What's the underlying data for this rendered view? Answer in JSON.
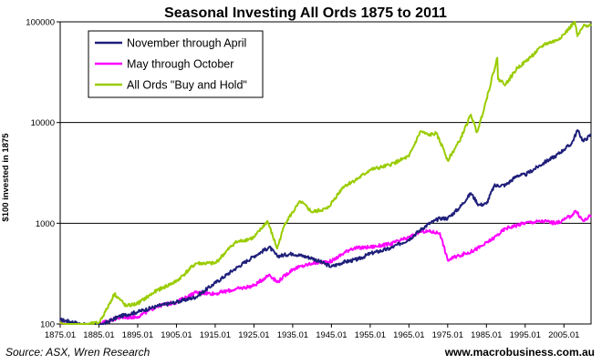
{
  "chart_data": {
    "type": "line",
    "title": "Seasonal Investing All Ords 1875 to 2011",
    "ylabel": "$100 invested in 1875",
    "xlabel": "",
    "yscale": "log",
    "ylim": [
      100,
      100000
    ],
    "xlim": [
      1875,
      2012
    ],
    "y_ticks": [
      100,
      1000,
      10000,
      100000
    ],
    "y_tick_labels": [
      "100",
      "1000",
      "10000",
      "100000"
    ],
    "x_ticks": [
      1875,
      1885,
      1895,
      1905,
      1915,
      1925,
      1935,
      1945,
      1955,
      1965,
      1975,
      1985,
      1995,
      2005
    ],
    "x_tick_labels": [
      "1875.01",
      "1885.01",
      "1895.01",
      "1905.01",
      "1915.01",
      "1925.01",
      "1935.01",
      "1945.01",
      "1955.01",
      "1965.01",
      "1975.01",
      "1985.01",
      "1995.01",
      "2005.01"
    ],
    "legend_position": "top-left",
    "series": [
      {
        "name": "November through April",
        "color": "#1f1f7a",
        "x": [
          1875,
          1878,
          1881,
          1885,
          1890,
          1895,
          1900,
          1905,
          1910,
          1915,
          1920,
          1925,
          1929,
          1931,
          1935,
          1940,
          1945,
          1948,
          1952,
          1955,
          1960,
          1965,
          1968,
          1970,
          1973,
          1975,
          1978,
          1981,
          1983,
          1985,
          1987,
          1990,
          1993,
          1995,
          2000,
          2003,
          2005,
          2007,
          2008.5,
          2010,
          2012
        ],
        "values": [
          110,
          105,
          98,
          95,
          118,
          132,
          150,
          165,
          185,
          255,
          350,
          470,
          580,
          470,
          500,
          450,
          370,
          410,
          440,
          500,
          560,
          690,
          860,
          980,
          1120,
          1120,
          1420,
          1990,
          1520,
          1560,
          2350,
          2400,
          2990,
          3020,
          4020,
          4700,
          5400,
          6200,
          8400,
          6500,
          7600
        ]
      },
      {
        "name": "May through October",
        "color": "#ff00ff",
        "x": [
          1875,
          1880,
          1885,
          1890,
          1895,
          1900,
          1905,
          1910,
          1915,
          1920,
          1925,
          1929,
          1931,
          1935,
          1940,
          1945,
          1950,
          1955,
          1960,
          1965,
          1968,
          1970,
          1973,
          1975,
          1978,
          1981,
          1984,
          1987,
          1990,
          1995,
          2000,
          2003,
          2005,
          2007,
          2008,
          2010,
          2012
        ],
        "values": [
          100,
          95,
          100,
          115,
          118,
          150,
          165,
          205,
          200,
          220,
          240,
          310,
          260,
          350,
          400,
          420,
          560,
          580,
          620,
          720,
          830,
          830,
          800,
          430,
          480,
          520,
          600,
          720,
          890,
          1010,
          1050,
          1000,
          1080,
          1200,
          1330,
          1050,
          1200
        ]
      },
      {
        "name": "All Ords \"Buy and Hold\"",
        "color": "#99cc00",
        "x": [
          1875,
          1878,
          1880,
          1885,
          1887,
          1889,
          1892,
          1895,
          1900,
          1905,
          1910,
          1915,
          1920,
          1925,
          1928.5,
          1931,
          1933,
          1937,
          1940,
          1944,
          1948,
          1952,
          1955,
          1958,
          1960,
          1965,
          1968,
          1970,
          1972,
          1974,
          1975,
          1978,
          1981,
          1982.5,
          1983,
          1985,
          1987.8,
          1988,
          1990,
          1993,
          1995,
          2000,
          2003,
          2005,
          2007.8,
          2008.5,
          2010,
          2012
        ],
        "values": [
          100,
          92,
          95,
          103,
          140,
          200,
          150,
          160,
          215,
          265,
          400,
          400,
          640,
          720,
          1050,
          560,
          1000,
          1650,
          1290,
          1400,
          2300,
          2800,
          3400,
          3600,
          3800,
          4600,
          8200,
          7500,
          7800,
          5400,
          4200,
          6500,
          12000,
          8000,
          9000,
          17000,
          44000,
          27000,
          24000,
          35000,
          40000,
          60000,
          65000,
          75000,
          100000,
          72000,
          90000,
          95000
        ]
      }
    ]
  },
  "footer": {
    "source": "Source: ASX, Wren Research",
    "website": "www.macrobusiness.com.au"
  }
}
